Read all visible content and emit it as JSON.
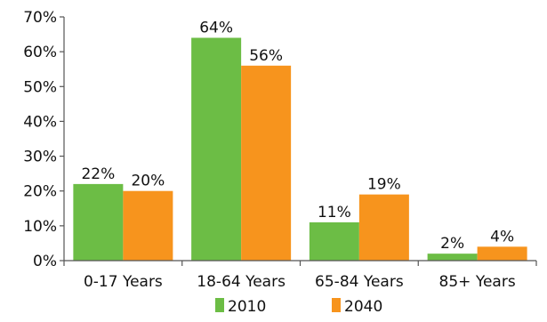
{
  "chart_data": {
    "type": "bar",
    "categories": [
      "0-17 Years",
      "18-64 Years",
      "65-84 Years",
      "85+ Years"
    ],
    "series": [
      {
        "name": "2010",
        "values": [
          22,
          64,
          11,
          2
        ],
        "labels": [
          "22%",
          "64%",
          "11%",
          "2%"
        ],
        "color": "#6cbd45"
      },
      {
        "name": "2040",
        "values": [
          20,
          56,
          19,
          4
        ],
        "labels": [
          "20%",
          "56%",
          "19%",
          "4%"
        ],
        "color": "#f7941d"
      }
    ],
    "ylim": [
      0,
      70
    ],
    "yticks": [
      0,
      10,
      20,
      30,
      40,
      50,
      60,
      70
    ],
    "ytick_labels": [
      "0%",
      "10%",
      "20%",
      "30%",
      "40%",
      "50%",
      "60%",
      "70%"
    ],
    "grid": false,
    "legend_position": "bottom"
  }
}
